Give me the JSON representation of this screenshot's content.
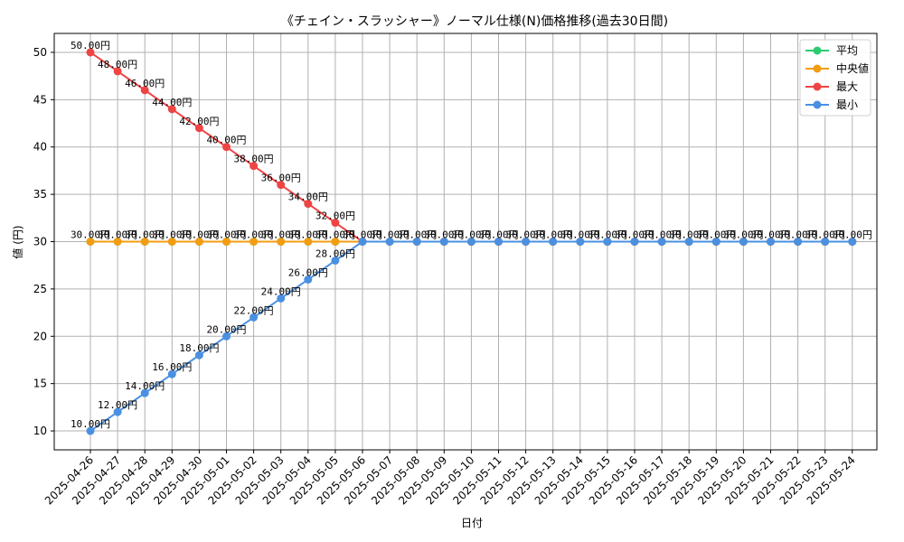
{
  "chart_data": {
    "type": "line",
    "title": "《チェイン・スラッシャー》ノーマル仕様(N)価格推移(過去30日間)",
    "xlabel": "日付",
    "ylabel": "値 (円)",
    "ylim": [
      8,
      52
    ],
    "yticks": [
      10,
      15,
      20,
      25,
      30,
      35,
      40,
      45,
      50
    ],
    "grid": true,
    "legend_position": "top-right",
    "value_suffix": "円",
    "categories": [
      "2025-04-26",
      "2025-04-27",
      "2025-04-28",
      "2025-04-29",
      "2025-04-30",
      "2025-05-01",
      "2025-05-02",
      "2025-05-03",
      "2025-05-04",
      "2025-05-05",
      "2025-05-06",
      "2025-05-07",
      "2025-05-08",
      "2025-05-09",
      "2025-05-10",
      "2025-05-11",
      "2025-05-12",
      "2025-05-13",
      "2025-05-14",
      "2025-05-15",
      "2025-05-16",
      "2025-05-17",
      "2025-05-18",
      "2025-05-19",
      "2025-05-20",
      "2025-05-21",
      "2025-05-22",
      "2025-05-23",
      "2025-05-24"
    ],
    "series": [
      {
        "name": "平均",
        "color": "#2ecc71",
        "values": [
          30,
          30,
          30,
          30,
          30,
          30,
          30,
          30,
          30,
          30,
          30,
          30,
          30,
          30,
          30,
          30,
          30,
          30,
          30,
          30,
          30,
          30,
          30,
          30,
          30,
          30,
          30,
          30,
          30
        ]
      },
      {
        "name": "中央値",
        "color": "#f39c12",
        "values": [
          30,
          30,
          30,
          30,
          30,
          30,
          30,
          30,
          30,
          30,
          30,
          30,
          30,
          30,
          30,
          30,
          30,
          30,
          30,
          30,
          30,
          30,
          30,
          30,
          30,
          30,
          30,
          30,
          30
        ]
      },
      {
        "name": "最大",
        "color": "#ef4444",
        "values": [
          50,
          48,
          46,
          44,
          42,
          40,
          38,
          36,
          34,
          32,
          30,
          30,
          30,
          30,
          30,
          30,
          30,
          30,
          30,
          30,
          30,
          30,
          30,
          30,
          30,
          30,
          30,
          30,
          30
        ]
      },
      {
        "name": "最小",
        "color": "#4a90e2",
        "values": [
          10,
          12,
          14,
          16,
          18,
          20,
          22,
          24,
          26,
          28,
          30,
          30,
          30,
          30,
          30,
          30,
          30,
          30,
          30,
          30,
          30,
          30,
          30,
          30,
          30,
          30,
          30,
          30,
          30
        ]
      }
    ]
  }
}
